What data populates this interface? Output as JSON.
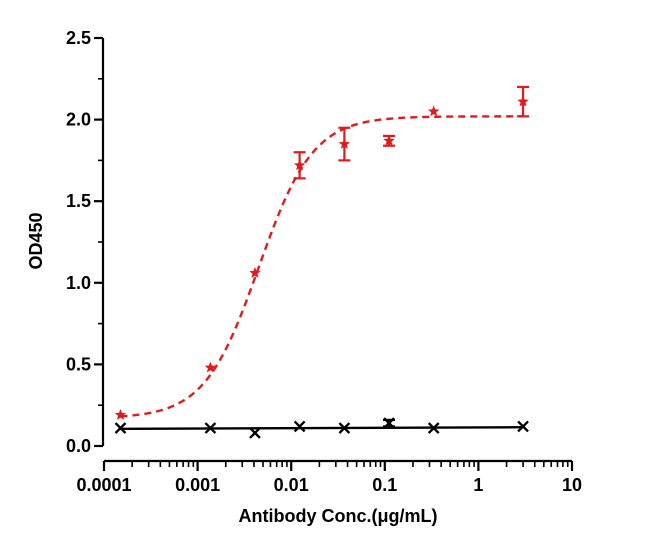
{
  "chart_data": {
    "type": "scatter",
    "title": "",
    "xlabel": "Antibody Conc.(μg/mL)",
    "ylabel": "OD450",
    "xscale": "log",
    "xlim": [
      0.0001,
      10
    ],
    "ylim": [
      0,
      2.5
    ],
    "x_ticks": [
      0.0001,
      0.001,
      0.01,
      0.1,
      1,
      10
    ],
    "x_tick_labels": [
      "0.0001",
      "0.001",
      "0.01",
      "0.1",
      "1",
      "10"
    ],
    "y_ticks": [
      0,
      0.5,
      1.0,
      1.5,
      2.0,
      2.5
    ],
    "y_tick_labels": [
      "0.0",
      "0.5",
      "1.0",
      "1.5",
      "2.0",
      "2.5"
    ],
    "grid": false,
    "legend": "none",
    "series": [
      {
        "marker": "star",
        "color": "#e31a1c",
        "fit_line": "dashed sigmoidal fit",
        "x": [
          0.00015,
          0.00137,
          0.0041,
          0.0123,
          0.037,
          0.111,
          0.333,
          3.0
        ],
        "y": [
          0.19,
          0.48,
          1.06,
          1.72,
          1.85,
          1.87,
          2.05,
          2.11
        ],
        "error": [
          0,
          0,
          0,
          0.08,
          0.1,
          0.03,
          0,
          0.09
        ]
      },
      {
        "marker": "x",
        "color": "#000000",
        "fit_line": "solid line",
        "x": [
          0.00015,
          0.00137,
          0.0041,
          0.0123,
          0.037,
          0.111,
          0.333,
          3.0
        ],
        "y": [
          0.11,
          0.11,
          0.08,
          0.12,
          0.11,
          0.14,
          0.11,
          0.12
        ],
        "error": [
          0,
          0,
          0,
          0,
          0,
          0.02,
          0,
          0
        ]
      }
    ]
  }
}
